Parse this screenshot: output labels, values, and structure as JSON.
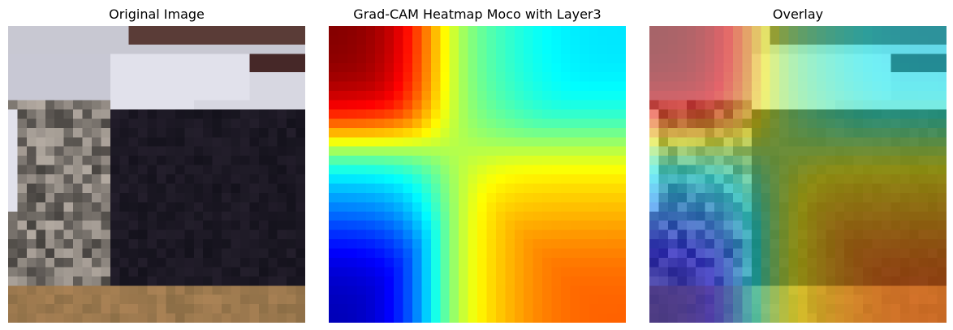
{
  "panels": {
    "original": {
      "title": "Original Image",
      "content": "pixelated photo of a grey tabby cat lying on a black cloth, white fabric at top, wooden floor at bottom"
    },
    "heatmap": {
      "title": "Grad-CAM Heatmap Moco with Layer3",
      "colormap": "jet"
    },
    "overlay": {
      "title": "Overlay",
      "content": "original image blended with the Grad-CAM heatmap"
    }
  },
  "image_grid": {
    "rows": 32,
    "cols": 32
  },
  "colors": {
    "jet_dark_red": "#7f0000",
    "jet_red": "#ff0000",
    "jet_orange": "#ff8000",
    "jet_yellow": "#ffff00",
    "jet_green": "#80ff80",
    "jet_cyan": "#00ffff",
    "jet_blue": "#0000ff",
    "jet_dark_blue": "#00007f"
  }
}
